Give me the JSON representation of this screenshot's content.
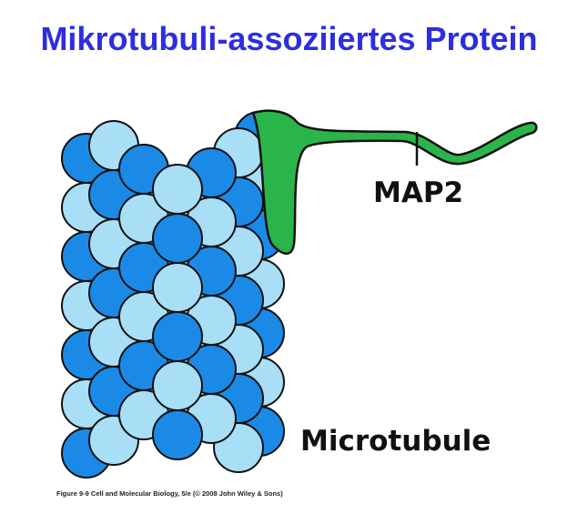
{
  "title": "Mikrotubuli-assoziiertes Protein",
  "labels": {
    "map2": "MAP2",
    "microtubule": "Microtubule"
  },
  "caption": "Figure 9-9  Cell and Molecular Biology, 5/e (© 2008 John Wiley & Sons)",
  "colors": {
    "title": "#2e2ee0",
    "tubulin_dark": "#1a8ae6",
    "tubulin_light": "#a8def6",
    "map2_green": "#2ab54a"
  }
}
